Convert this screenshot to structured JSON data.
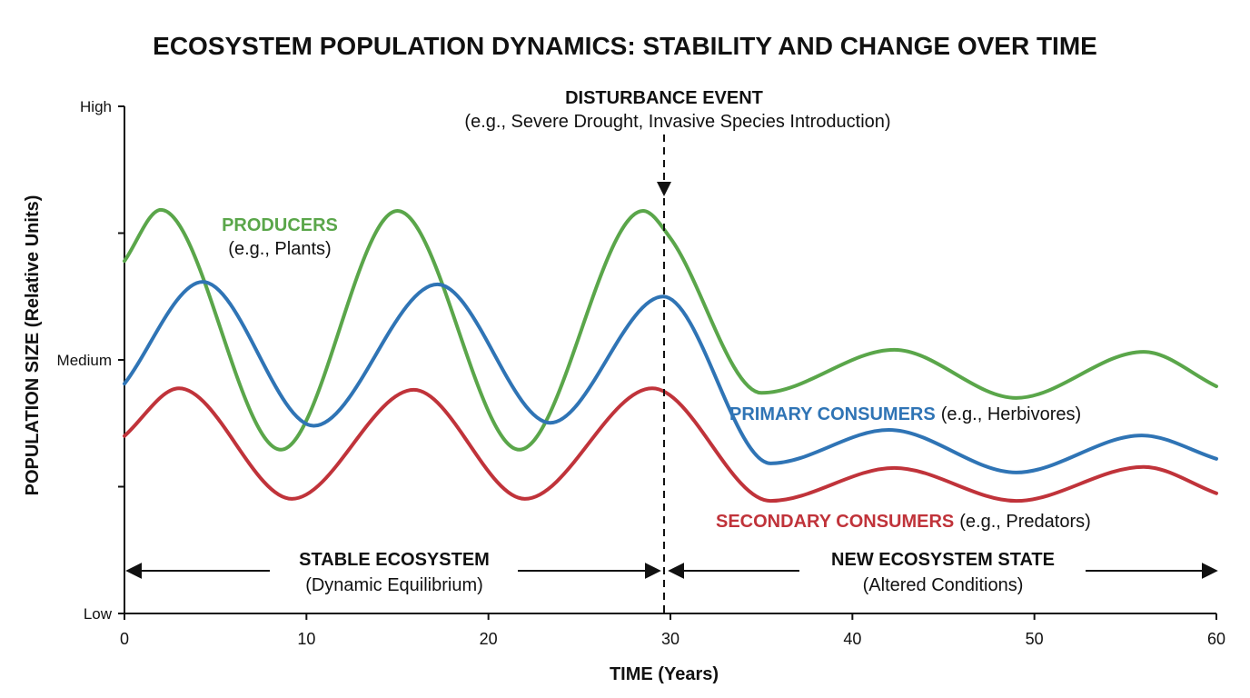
{
  "chart_data": {
    "type": "line",
    "title": "ECOSYSTEM POPULATION DYNAMICS: STABILITY AND CHANGE OVER TIME",
    "xlabel": "TIME (Years)",
    "ylabel": "POPULATION SIZE (Relative Units)",
    "xlim": [
      0,
      60
    ],
    "ylim": [
      0,
      100
    ],
    "x_ticks": [
      0,
      10,
      20,
      30,
      40,
      50,
      60
    ],
    "y_tick_labels": [
      {
        "value": 0,
        "label": "Low"
      },
      {
        "value": 50,
        "label": "Medium"
      },
      {
        "value": 100,
        "label": "High"
      }
    ],
    "y_minor_ticks": [
      25,
      75
    ],
    "grid": false,
    "series": [
      {
        "name": "PRODUCERS",
        "note": "(e.g., Plants)",
        "color": "#5aa64a",
        "x": [
          0,
          2,
          8.6,
          15,
          21.7,
          28.5,
          30,
          35,
          42.3,
          49,
          56,
          60
        ],
        "y": [
          69.5,
          79.6,
          32.3,
          79.4,
          32.3,
          79.4,
          74,
          43.5,
          52,
          42.5,
          51.6,
          44.8
        ]
      },
      {
        "name": "PRIMARY CONSUMERS",
        "note": "(e.g., Herbivores)",
        "color": "#2f74b5",
        "x": [
          0,
          4.3,
          10.4,
          17.2,
          23.4,
          29.6,
          35.5,
          42,
          49,
          55.9,
          60
        ],
        "y": [
          45.3,
          65.4,
          37,
          64.9,
          37.6,
          62.5,
          29.6,
          36.2,
          27.8,
          35.1,
          30.5
        ]
      },
      {
        "name": "SECONDARY CONSUMERS",
        "note": "(e.g., Predators)",
        "color": "#c0333a",
        "x": [
          0,
          3,
          9.2,
          15.9,
          22,
          29,
          35.5,
          42.3,
          49,
          56,
          60
        ],
        "y": [
          35,
          44.4,
          22.6,
          44.1,
          22.6,
          44.4,
          22.2,
          28.7,
          22.2,
          28.9,
          23.7
        ]
      }
    ],
    "annotations": {
      "event_x": 30,
      "event_title": "DISTURBANCE EVENT",
      "event_sub": "(e.g., Severe Drought, Invasive Species Introduction)",
      "stable_title": "STABLE ECOSYSTEM",
      "stable_sub": "(Dynamic Equilibrium)",
      "new_title": "NEW ECOSYSTEM STATE",
      "new_sub": "(Altered Conditions)"
    }
  }
}
